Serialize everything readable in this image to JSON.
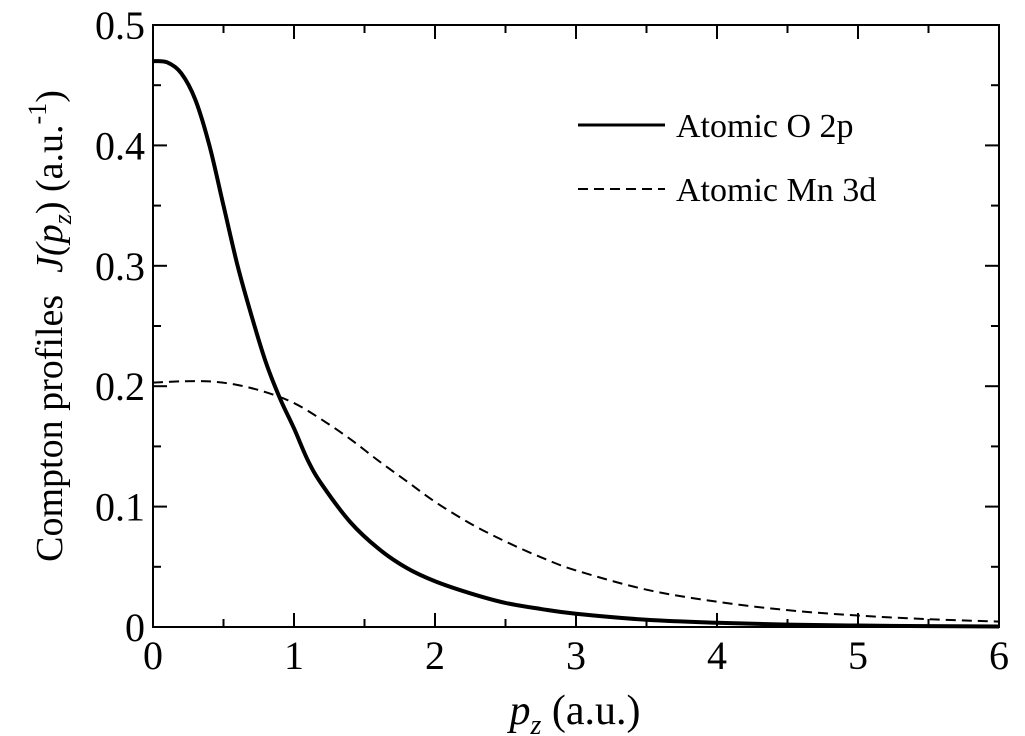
{
  "chart_data": {
    "type": "line",
    "title": "",
    "xlabel": {
      "symbol": "p",
      "subscript": "z",
      "units": " (a.u.)"
    },
    "ylabel": {
      "prefix": "Compton profiles",
      "func": "J(",
      "symbol": "p",
      "subscript": "z",
      "close": ")",
      "units": " (a.u.",
      "superscript": "-1",
      "units_close": ")"
    },
    "xlim": [
      0,
      6
    ],
    "ylim": [
      0,
      0.5
    ],
    "x_ticks": [
      "0",
      "1",
      "2",
      "3",
      "4",
      "5",
      "6"
    ],
    "y_ticks": [
      "0",
      "0.1",
      "0.2",
      "0.3",
      "0.4",
      "0.5"
    ],
    "legend_position": "top-right",
    "grid": false,
    "series": [
      {
        "name": "Atomic O 2p",
        "style": "solid",
        "x": [
          0,
          0.1,
          0.2,
          0.3,
          0.4,
          0.5,
          0.6,
          0.7,
          0.8,
          0.9,
          1.0,
          1.1,
          1.2,
          1.4,
          1.6,
          1.8,
          2.0,
          2.25,
          2.5,
          2.75,
          3.0,
          3.5,
          4.0,
          4.5,
          5.0,
          5.5,
          6.0
        ],
        "y": [
          0.47,
          0.469,
          0.46,
          0.438,
          0.4,
          0.35,
          0.3,
          0.258,
          0.22,
          0.19,
          0.165,
          0.138,
          0.118,
          0.087,
          0.065,
          0.049,
          0.038,
          0.028,
          0.02,
          0.015,
          0.011,
          0.006,
          0.0035,
          0.002,
          0.0012,
          0.0007,
          0.0004
        ]
      },
      {
        "name": "Atomic Mn 3d",
        "style": "dashed",
        "x": [
          0,
          0.2,
          0.4,
          0.6,
          0.8,
          1.0,
          1.2,
          1.4,
          1.6,
          1.8,
          2.0,
          2.25,
          2.5,
          2.75,
          3.0,
          3.5,
          4.0,
          4.5,
          5.0,
          5.5,
          6.0
        ],
        "y": [
          0.203,
          0.204,
          0.204,
          0.201,
          0.195,
          0.186,
          0.172,
          0.156,
          0.138,
          0.121,
          0.104,
          0.086,
          0.071,
          0.058,
          0.047,
          0.031,
          0.021,
          0.014,
          0.0095,
          0.0065,
          0.0045
        ]
      }
    ]
  },
  "colors": {
    "axis": "#000000",
    "series": "#000000",
    "background": "#ffffff"
  }
}
